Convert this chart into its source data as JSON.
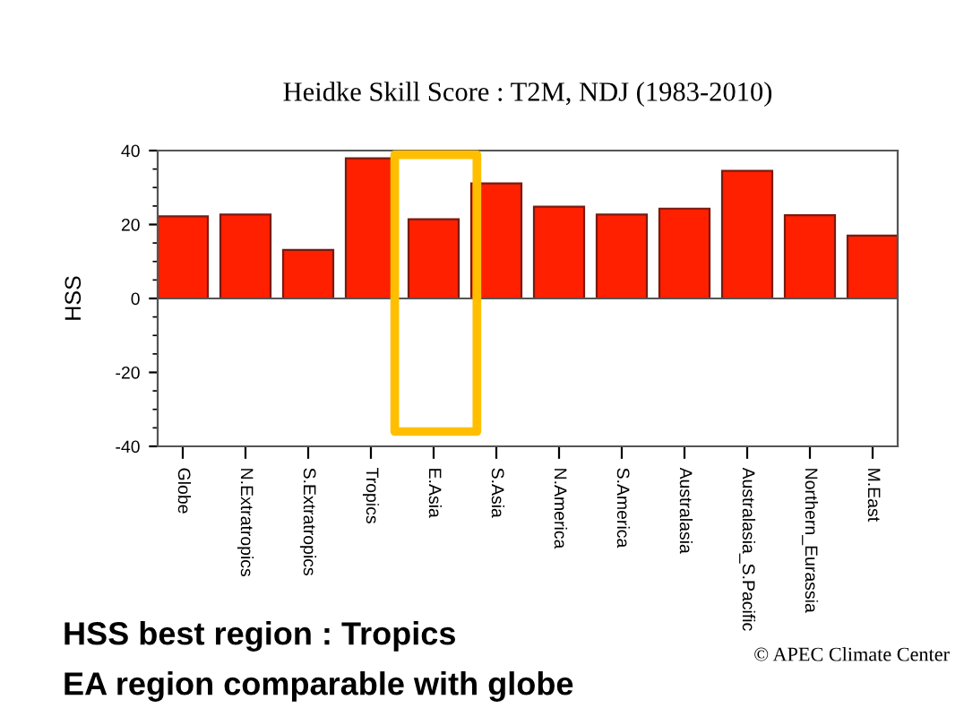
{
  "chart_data": {
    "type": "bar",
    "title": "Heidke Skill Score : T2M, NDJ (1983-2010)",
    "ylabel": "HSS",
    "categories": [
      "Globe",
      "N.Extratropics",
      "S.Extratropics",
      "Tropics",
      "E.Asia",
      "S.Asia",
      "N.America",
      "S.America",
      "Australasia",
      "Australasia_S.Pacific",
      "Northern_Eurassia",
      "M.East"
    ],
    "values": [
      22.2,
      22.7,
      13.1,
      37.9,
      21.4,
      31.1,
      24.8,
      22.7,
      24.3,
      34.5,
      22.5,
      17.0
    ],
    "color": "#ff2000",
    "ylim": [
      -40,
      40
    ],
    "yticks": [
      -40,
      -20,
      0,
      20,
      40
    ],
    "ref_lines": [
      {
        "axis": "y",
        "value": 0,
        "color": "#555555"
      }
    ],
    "annotations": [
      "HSS best region : Tropics",
      "EA region comparable with globe",
      "© APEC Climate Center"
    ]
  }
}
